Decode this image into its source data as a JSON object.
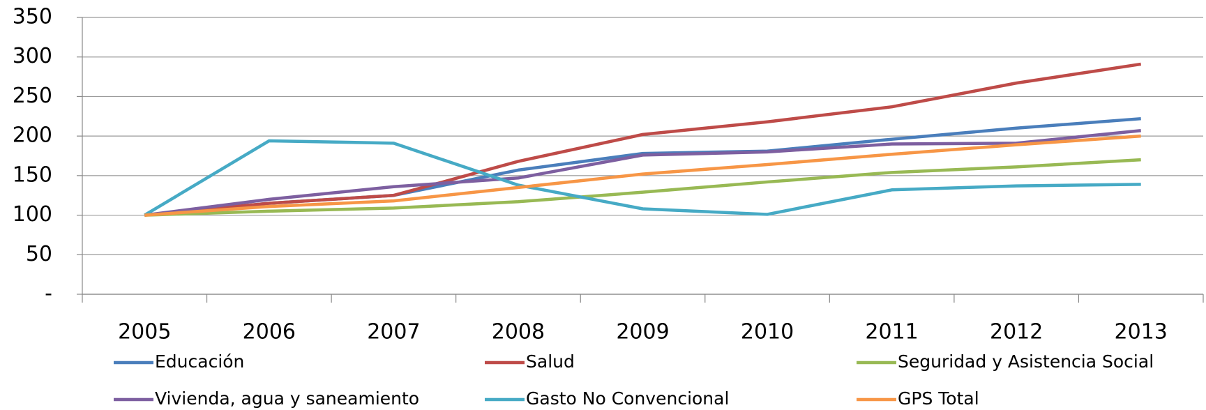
{
  "chart_data": {
    "type": "line",
    "categories": [
      "2005",
      "2006",
      "2007",
      "2008",
      "2009",
      "2010",
      "2011",
      "2012",
      "2013"
    ],
    "series": [
      {
        "name": "Educación",
        "color": "#4a7ebb",
        "values": [
          100,
          115,
          125,
          157,
          178,
          181,
          196,
          210,
          222
        ]
      },
      {
        "name": "Salud",
        "color": "#be4b48",
        "values": [
          100,
          115,
          125,
          168,
          202,
          218,
          237,
          267,
          291
        ]
      },
      {
        "name": "Seguridad y Asistencia Social",
        "color": "#98b954",
        "values": [
          100,
          105,
          109,
          117,
          129,
          142,
          154,
          161,
          170
        ]
      },
      {
        "name": "Vivienda, agua y saneamiento",
        "color": "#7d5fa0",
        "values": [
          100,
          120,
          136,
          147,
          176,
          180,
          190,
          191,
          207
        ]
      },
      {
        "name": "Gasto No Convencional",
        "color": "#46aac5",
        "values": [
          100,
          194,
          191,
          138,
          108,
          101,
          132,
          137,
          139
        ]
      },
      {
        "name": "GPS Total",
        "color": "#f79646",
        "values": [
          100,
          111,
          118,
          135,
          152,
          164,
          177,
          189,
          200
        ]
      }
    ],
    "ylim": [
      0,
      350
    ],
    "yticks": [
      {
        "value": 0,
        "label": "-"
      },
      50,
      100,
      150,
      200,
      250,
      300,
      350
    ],
    "grid": true
  }
}
